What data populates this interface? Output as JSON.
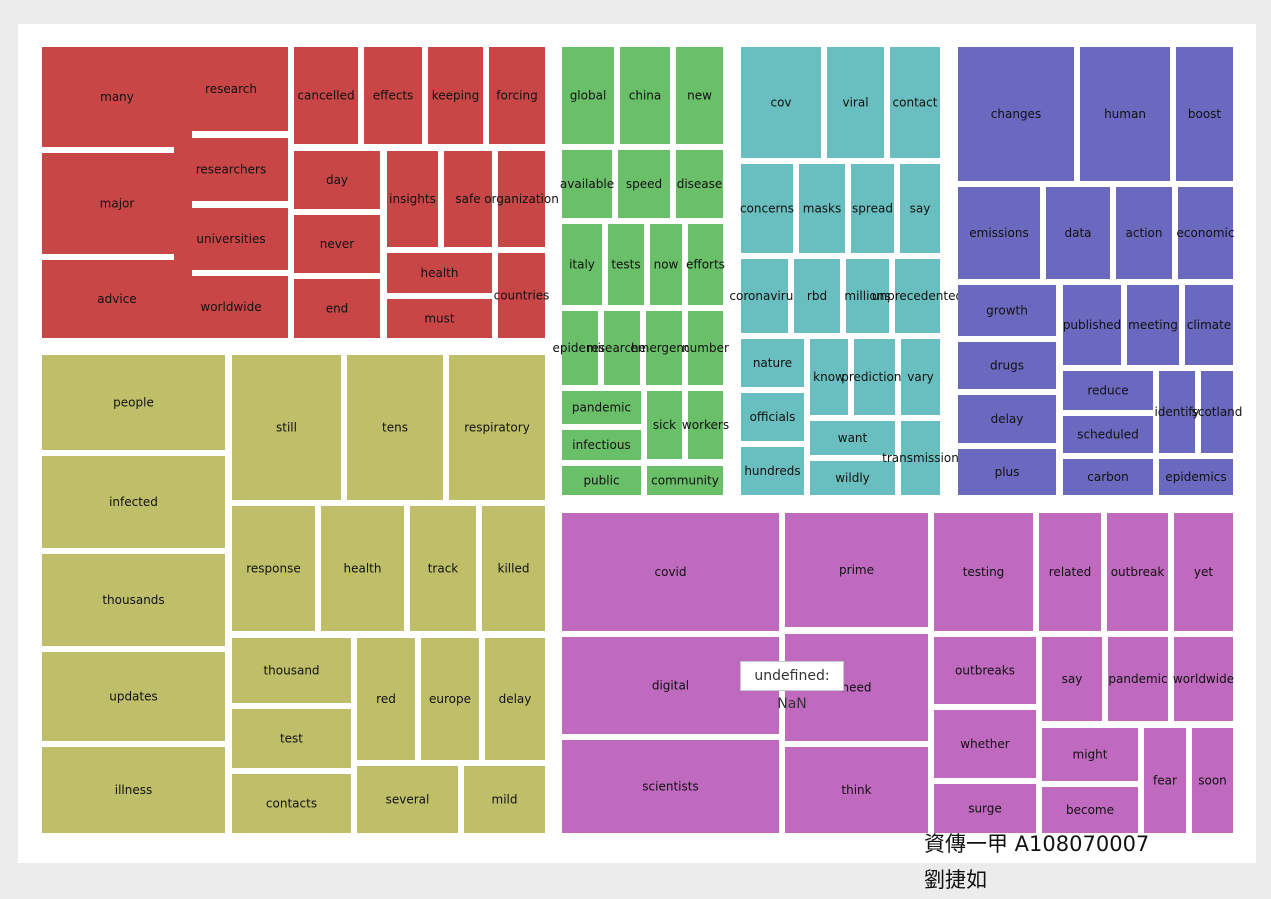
{
  "chart_data": {
    "type": "treemap",
    "groups": [
      {
        "color": "#c94646",
        "words": [
          "many",
          "major",
          "advice",
          "research",
          "researchers",
          "universities",
          "worldwide",
          "cancelled",
          "effects",
          "keeping",
          "forcing",
          "day",
          "never",
          "end",
          "insights",
          "safe",
          "organization",
          "health",
          "must",
          "countries"
        ]
      },
      {
        "color": "#c0bf69",
        "words": [
          "people",
          "infected",
          "thousands",
          "updates",
          "illness",
          "still",
          "tens",
          "respiratory",
          "response",
          "health",
          "track",
          "killed",
          "thousand",
          "test",
          "contacts",
          "red",
          "europe",
          "delay",
          "several",
          "mild"
        ]
      },
      {
        "color": "#6abf69",
        "words": [
          "global",
          "china",
          "new",
          "available",
          "speed",
          "disease",
          "italy",
          "tests",
          "now",
          "efforts",
          "epidemic",
          "researchers",
          "emergency",
          "number",
          "pandemic",
          "infectious",
          "public",
          "sick",
          "workers",
          "community"
        ]
      },
      {
        "color": "#69bfbf",
        "words": [
          "cov",
          "viral",
          "contact",
          "concerns",
          "masks",
          "spread",
          "say",
          "coronavirus",
          "rbd",
          "millions",
          "unprecedented",
          "nature",
          "know",
          "predictions",
          "vary",
          "officials",
          "want",
          "hundreds",
          "wildly",
          "transmission"
        ]
      },
      {
        "color": "#6b69bf",
        "words": [
          "changes",
          "human",
          "boost",
          "emissions",
          "data",
          "action",
          "economic",
          "growth",
          "drugs",
          "delay",
          "plus",
          "published",
          "meeting",
          "climate",
          "reduce",
          "scheduled",
          "carbon",
          "identify",
          "scotland",
          "epidemics"
        ]
      },
      {
        "color": "#bf69bf",
        "words": [
          "covid",
          "digital",
          "scientists",
          "prime",
          "need",
          "think",
          "testing",
          "related",
          "outbreak",
          "yet",
          "outbreaks",
          "say",
          "pandemic",
          "worldwide",
          "whether",
          "surge",
          "might",
          "become",
          "fear",
          "soon"
        ]
      }
    ]
  },
  "tooltip": {
    "text": "undefined: NaN"
  },
  "credit": {
    "line1": "資傳一甲 A108070007",
    "line2": "劉捷如"
  }
}
